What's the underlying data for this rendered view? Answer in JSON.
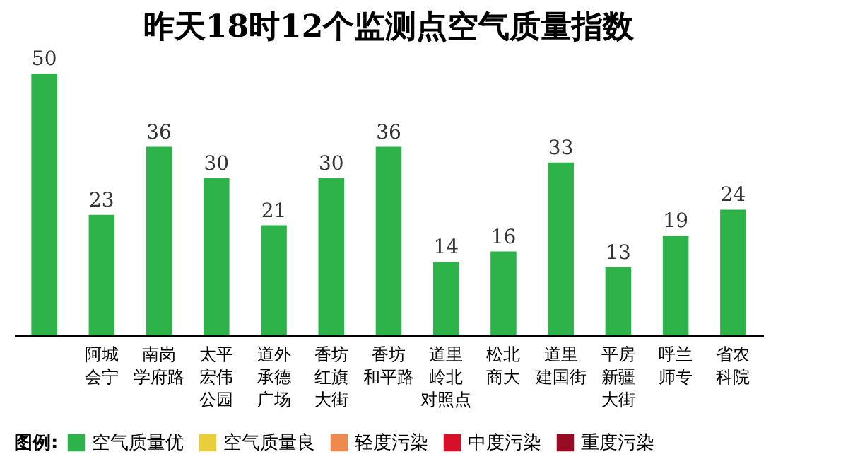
{
  "chart_data": {
    "type": "bar",
    "title": "昨天18时12个监测点空气质量指数",
    "categories": [
      null,
      "阿城会宁",
      "南岗学府路",
      "太平宏伟公园",
      "道外承德广场",
      "香坊红旗大街",
      "香坊和平路",
      "道里岭北对照点",
      "松北商大",
      "道里建国街",
      "平房新疆大街",
      "呼兰师专",
      "省农科院"
    ],
    "series": [
      {
        "name": "空气质量优",
        "color": "#2db34a",
        "values": [
          50,
          23,
          36,
          30,
          21,
          30,
          36,
          14,
          16,
          33,
          13,
          19,
          24
        ]
      },
      {
        "name": "空气质量良",
        "color": "#e8cf3a",
        "values": [
          null,
          null,
          null,
          null,
          null,
          null,
          null,
          null,
          null,
          null,
          null,
          null,
          null
        ]
      },
      {
        "name": "轻度污染",
        "color": "#ef8a4e",
        "values": [
          null,
          null,
          null,
          null,
          null,
          null,
          null,
          null,
          null,
          null,
          null,
          null,
          null
        ]
      },
      {
        "name": "中度污染",
        "color": "#d7102a",
        "values": [
          null,
          null,
          null,
          null,
          null,
          null,
          null,
          null,
          null,
          null,
          null,
          null,
          null
        ]
      },
      {
        "name": "重度污染",
        "color": "#960c22",
        "values": [
          null,
          null,
          null,
          null,
          null,
          null,
          null,
          null,
          null,
          null,
          null,
          null,
          null
        ]
      }
    ],
    "legend_title": "图例:",
    "legend": "bottom",
    "data_labels": true,
    "grid": false
  }
}
